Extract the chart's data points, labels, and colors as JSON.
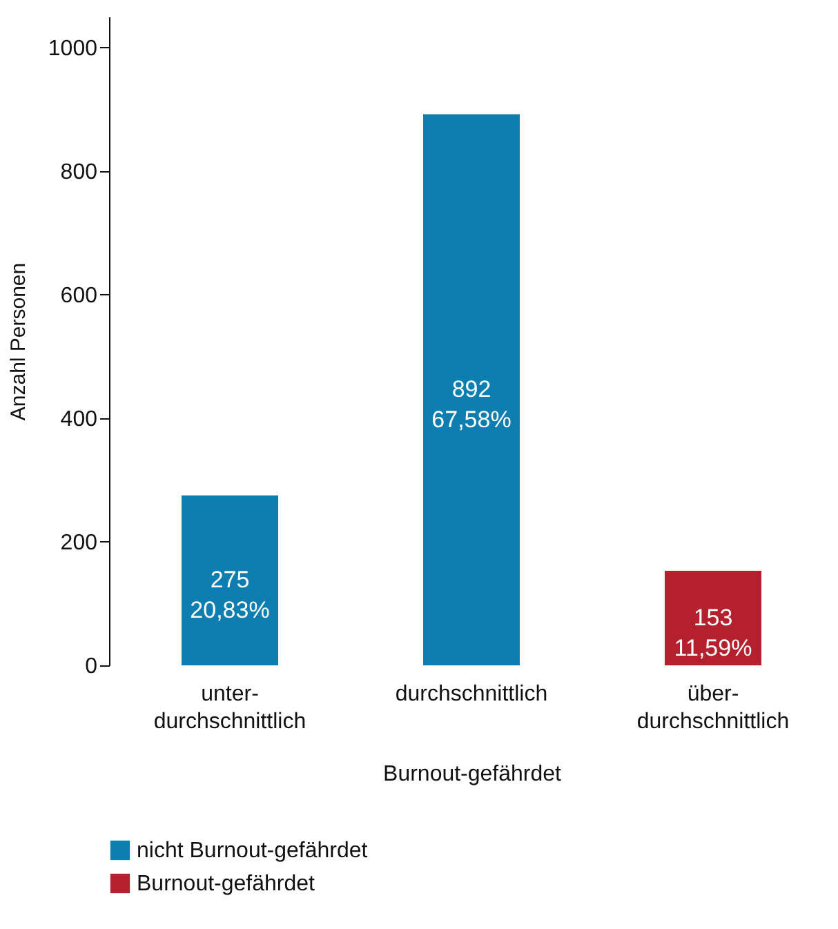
{
  "chart_data": {
    "type": "bar",
    "xlabel": "Burnout-gefährdet",
    "ylabel": "Anzahl Personen",
    "categories": [
      "unter-\ndurchschnittlich",
      "durchschnittlich",
      "über-\ndurchschnittlich"
    ],
    "series": [
      {
        "name": "nicht Burnout-gefährdet",
        "color": "#0e7eb0",
        "values": [
          275,
          892,
          null
        ],
        "value_labels": [
          "275\n20,83%",
          "892\n67,58%",
          null
        ]
      },
      {
        "name": "Burnout-gefährdet",
        "color": "#b5202e",
        "values": [
          null,
          null,
          153
        ],
        "value_labels": [
          null,
          null,
          "153\n11,59%"
        ]
      }
    ],
    "ylim": [
      0,
      1050
    ],
    "yticks": [
      0,
      200,
      400,
      600,
      800,
      1000
    ],
    "grid": false,
    "legend": "bottom"
  }
}
